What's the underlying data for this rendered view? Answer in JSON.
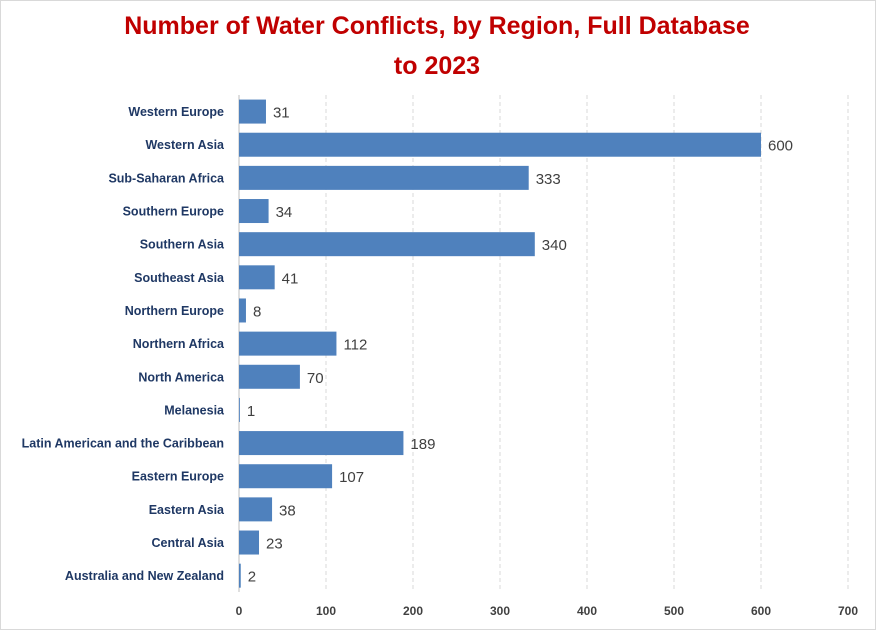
{
  "chart_data": {
    "type": "bar",
    "orientation": "horizontal",
    "title": "Number of Water Conflicts, by Region, Full Database to 2023",
    "xlabel": "",
    "ylabel": "",
    "categories": [
      "Western Europe",
      "Western Asia",
      "Sub-Saharan Africa",
      "Southern Europe",
      "Southern Asia",
      "Southeast Asia",
      "Northern Europe",
      "Northern Africa",
      "North America",
      "Melanesia",
      "Latin American and the Caribbean",
      "Eastern Europe",
      "Eastern Asia",
      "Central Asia",
      "Australia and New Zealand"
    ],
    "values": [
      31,
      600,
      333,
      34,
      340,
      41,
      8,
      112,
      70,
      1,
      189,
      107,
      38,
      23,
      2
    ],
    "xlim": [
      0,
      700
    ],
    "xticks": [
      "0",
      "100",
      "200",
      "300",
      "400",
      "500",
      "600",
      "700"
    ],
    "grid": "vertical dashed",
    "legend": "none",
    "colors": {
      "bar": "#4f81bd",
      "title": "#c00000",
      "category_label": "#1f3864",
      "grid": "#d9d9d9"
    }
  }
}
